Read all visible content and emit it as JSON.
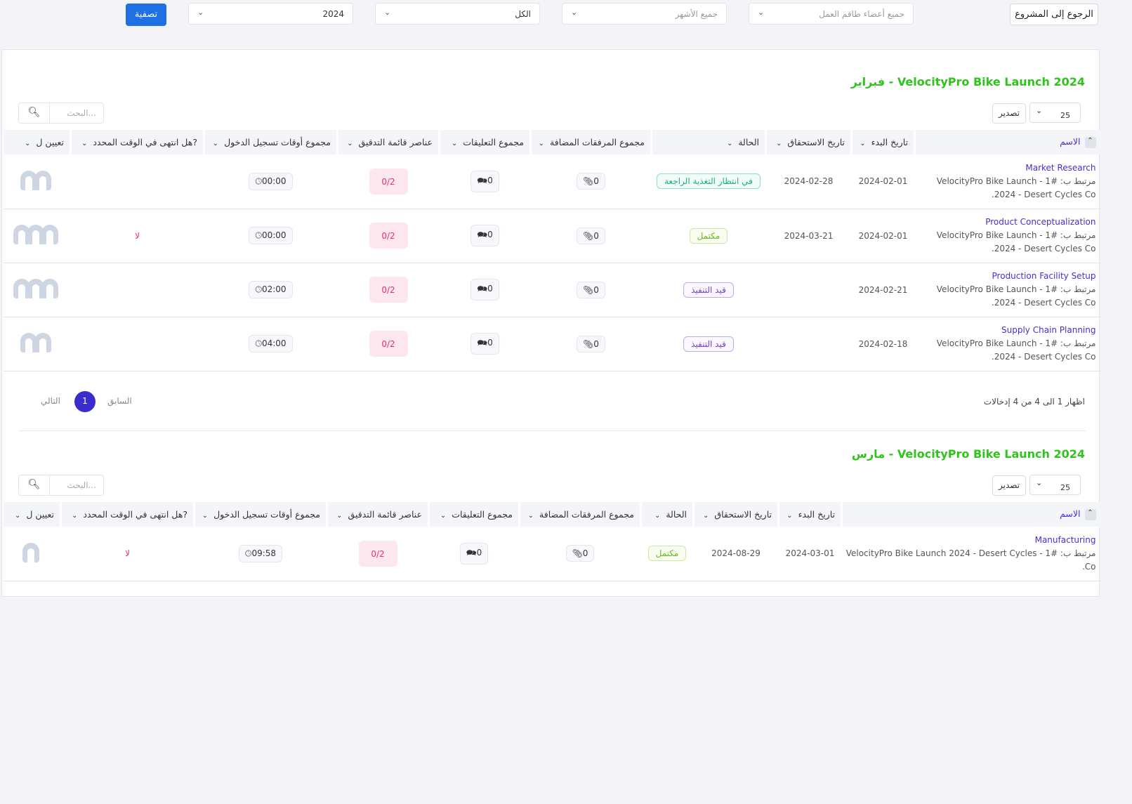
{
  "topbar": {
    "back_label": "الرجوع إلى المشروع",
    "members_placeholder": "جميع أعضاء طاقم العمل",
    "months_placeholder": "جميع الأشهر",
    "status_value": "الكل",
    "year_value": "2024",
    "filter_label": "تصفية"
  },
  "columns": [
    "الاسم",
    "تاريخ البدء",
    "تاريخ الاستحقاق",
    "الحالة",
    "مجموع المرفقات المضافة",
    "مجموع التعليقات",
    "عناصر قائمة التدقيق",
    "مجموع أوقات تسجيل الدخول",
    "?هل انتهى في الوقت المحدد",
    "تعيين ل"
  ],
  "colors": {
    "title": "#2ec51a",
    "link": "#4a2ccd",
    "filter": "#1f6fe5",
    "checklist": "#e8306a"
  },
  "sections": [
    {
      "title": "VelocityPro Bike Launch 2024 - فبراير",
      "search_placeholder": "البحث...",
      "export_label": "تصدير",
      "per_page": "25",
      "rows": [
        {
          "name": "Market Research",
          "related": "مرتبط ب: #1 - VelocityPro Bike Launch 2024 - Desert Cycles Co.",
          "start": "2024-02-01",
          "due": "2024-02-28",
          "status": "في انتظار التغذية الراجعة",
          "status_type": "feedback",
          "attachments": "0",
          "comments": "0",
          "checklist": "0/2",
          "time": "00:00",
          "on_time": "",
          "assignees": 2
        },
        {
          "name": "Product Conceptualization",
          "related": "مرتبط ب: #1 - VelocityPro Bike Launch 2024 - Desert Cycles Co.",
          "start": "2024-02-01",
          "due": "2024-03-21",
          "status": "مكتمل",
          "status_type": "complete",
          "attachments": "0",
          "comments": "0",
          "checklist": "0/2",
          "time": "00:00",
          "on_time": "لا",
          "assignees": 3
        },
        {
          "name": "Production Facility Setup",
          "related": "مرتبط ب: #1 - VelocityPro Bike Launch 2024 - Desert Cycles Co.",
          "start": "2024-02-21",
          "due": "",
          "status": "قيد التنفيذ",
          "status_type": "progress",
          "attachments": "0",
          "comments": "0",
          "checklist": "0/2",
          "time": "02:00",
          "on_time": "",
          "assignees": 3
        },
        {
          "name": "Supply Chain Planning",
          "related": "مرتبط ب: #1 - VelocityPro Bike Launch 2024 - Desert Cycles Co.",
          "start": "2024-02-18",
          "due": "",
          "status": "قيد التنفيذ",
          "status_type": "progress",
          "attachments": "0",
          "comments": "0",
          "checklist": "0/2",
          "time": "04:00",
          "on_time": "",
          "assignees": 2
        }
      ],
      "pagination": {
        "info": "اظهار 1 الى 4 من 4 إدخالات",
        "prev": "السابق",
        "current": "1",
        "next": "التالي"
      }
    },
    {
      "title": "VelocityPro Bike Launch 2024 - مارس",
      "search_placeholder": "البحث...",
      "export_label": "تصدير",
      "per_page": "25",
      "rows": [
        {
          "name": "Manufacturing",
          "related": "مرتبط ب: #1 - VelocityPro Bike Launch 2024 - Desert Cycles Co.",
          "start": "2024-03-01",
          "due": "2024-08-29",
          "status": "مكتمل",
          "status_type": "complete",
          "attachments": "0",
          "comments": "0",
          "checklist": "0/2",
          "time": "09:58",
          "on_time": "لا",
          "assignees": 1
        }
      ]
    }
  ]
}
